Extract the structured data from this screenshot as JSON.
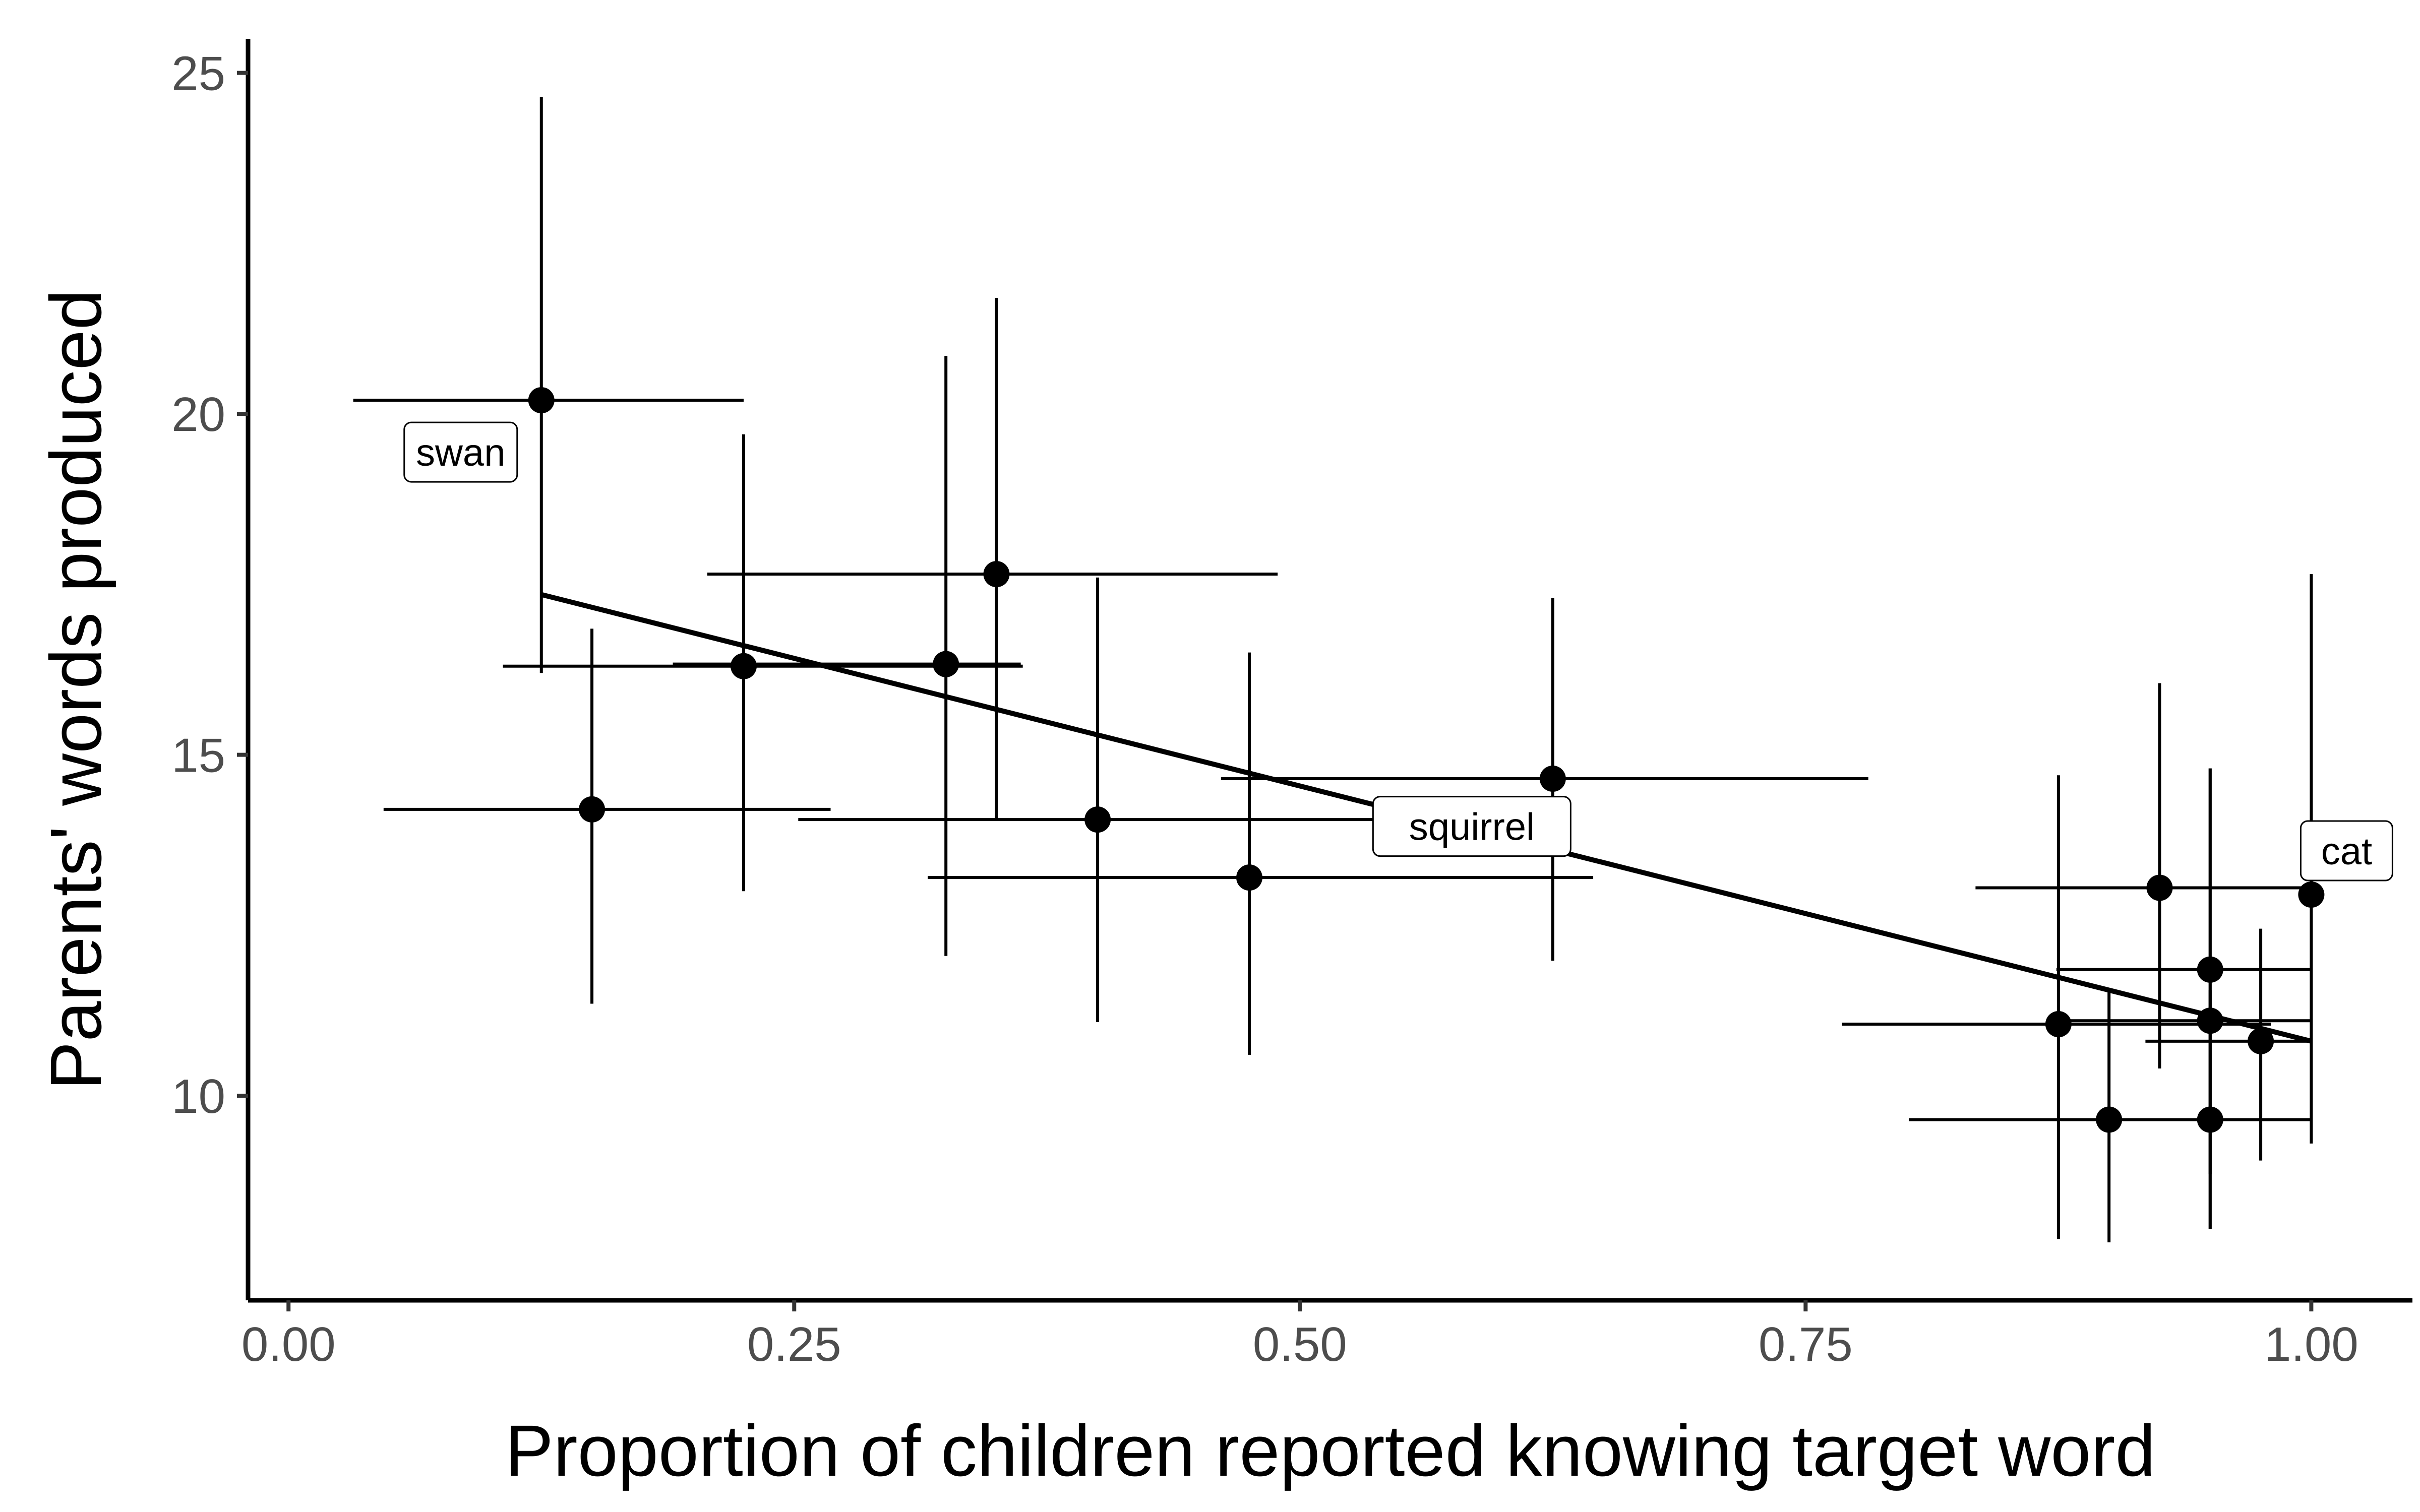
{
  "chart_data": {
    "type": "scatter",
    "title": "",
    "xlabel": "Proportion of children reported knowing target word",
    "ylabel": "Parents' words produced",
    "xlim": [
      -0.02,
      1.05
    ],
    "ylim": [
      7.0,
      25.5
    ],
    "x_ticks": [
      0.0,
      0.25,
      0.5,
      0.75,
      1.0
    ],
    "x_tick_labels": [
      "0.00",
      "0.25",
      "0.50",
      "0.75",
      "1.00"
    ],
    "y_ticks": [
      10,
      15,
      20,
      25
    ],
    "y_tick_labels": [
      "10",
      "15",
      "20",
      "25"
    ],
    "grid": false,
    "point_color": "#000000",
    "points": [
      {
        "x": 0.125,
        "y": 20.2,
        "xerr": [
          0.032,
          0.225
        ],
        "yerr": [
          16.2,
          24.65
        ],
        "label": "swan"
      },
      {
        "x": 0.15,
        "y": 14.2,
        "xerr": [
          0.047,
          0.268
        ],
        "yerr": [
          11.35,
          16.85
        ]
      },
      {
        "x": 0.225,
        "y": 16.3,
        "xerr": [
          0.106,
          0.363
        ],
        "yerr": [
          13.0,
          19.7
        ]
      },
      {
        "x": 0.325,
        "y": 16.33,
        "xerr": [
          0.19,
          0.362
        ],
        "yerr": [
          12.05,
          20.85
        ]
      },
      {
        "x": 0.35,
        "y": 17.65,
        "xerr": [
          0.207,
          0.489
        ],
        "yerr": [
          14.05,
          21.7
        ]
      },
      {
        "x": 0.4,
        "y": 14.05,
        "xerr": [
          0.252,
          0.536
        ],
        "yerr": [
          11.08,
          17.6
        ]
      },
      {
        "x": 0.475,
        "y": 13.2,
        "xerr": [
          0.316,
          0.645
        ],
        "yerr": [
          10.6,
          16.5
        ]
      },
      {
        "x": 0.625,
        "y": 14.65,
        "xerr": [
          0.461,
          0.781
        ],
        "yerr": [
          11.98,
          17.3
        ]
      },
      {
        "x": 0.875,
        "y": 11.05,
        "xerr": [
          0.768,
          0.98
        ],
        "yerr": [
          7.9,
          14.7
        ]
      },
      {
        "x": 0.9,
        "y": 9.65,
        "xerr": [
          0.801,
          0.99
        ],
        "yerr": [
          7.85,
          11.55
        ]
      },
      {
        "x": 0.925,
        "y": 13.05,
        "xerr": [
          0.834,
          1.0
        ],
        "yerr": [
          10.4,
          16.05
        ]
      },
      {
        "x": 0.95,
        "y": 11.85,
        "xerr": [
          0.874,
          1.0
        ],
        "yerr": [
          8.85,
          14.8
        ]
      },
      {
        "x": 0.95,
        "y": 11.1,
        "xerr": [
          0.874,
          1.0
        ],
        "yerr": [
          8.05,
          14.8
        ]
      },
      {
        "x": 0.95,
        "y": 9.65,
        "xerr": [
          0.874,
          1.0
        ],
        "yerr": [
          8.05,
          11.55
        ]
      },
      {
        "x": 0.975,
        "y": 10.8,
        "xerr": [
          0.918,
          1.0
        ],
        "yerr": [
          9.05,
          12.45
        ]
      },
      {
        "x": 1.0,
        "y": 12.95,
        "xerr": [
          1.0,
          1.0
        ],
        "yerr": [
          9.3,
          17.65
        ],
        "label": "cat"
      }
    ],
    "text_labels": [
      {
        "text": "squirrel",
        "x": 0.585,
        "y": 13.95
      }
    ],
    "fit_line": {
      "x": [
        0.125,
        1.0
      ],
      "y": [
        17.35,
        10.8
      ]
    }
  }
}
